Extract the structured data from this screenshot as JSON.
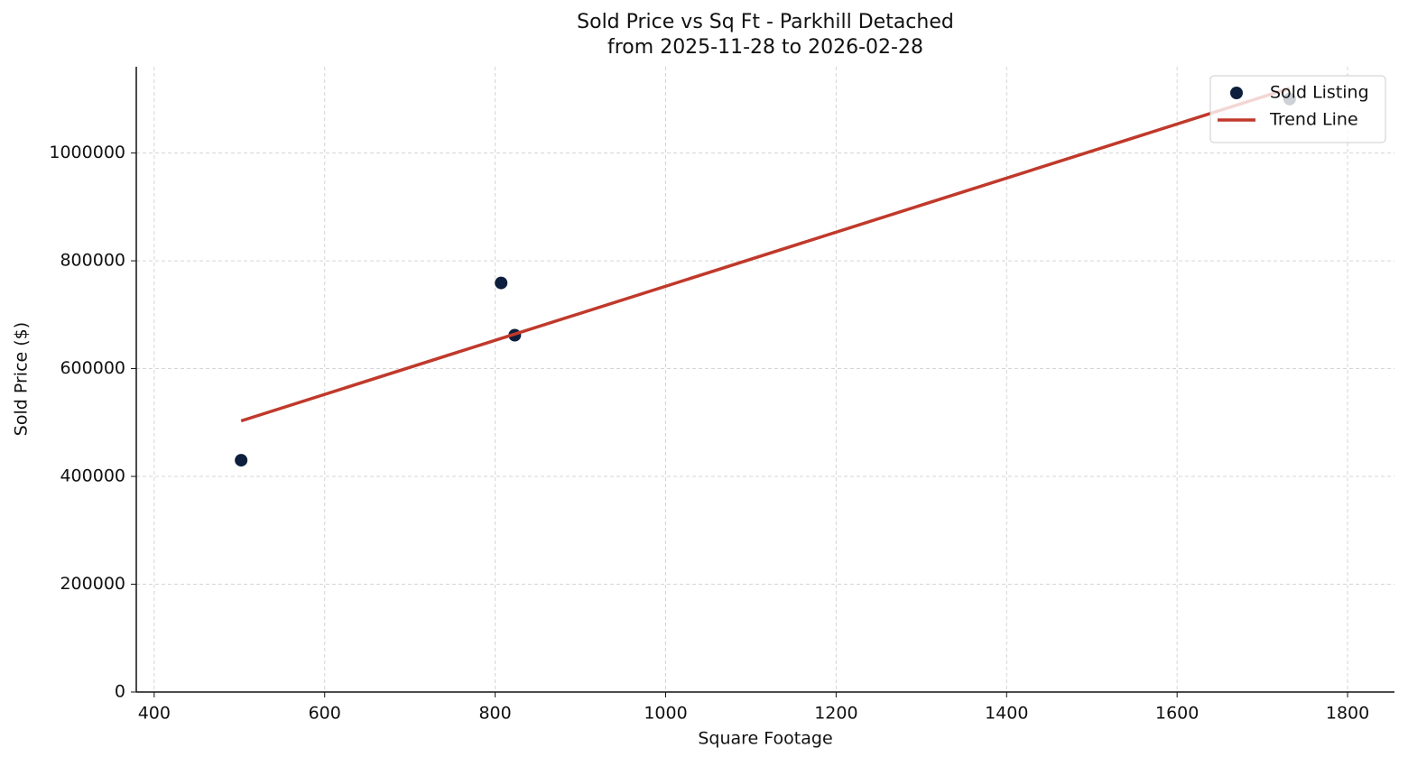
{
  "chart_data": {
    "type": "scatter",
    "title": "Sold Price vs Sq Ft - Parkhill Detached",
    "subtitle": "from 2025-11-28 to 2026-02-28",
    "x_label": "Square Footage",
    "y_label": "Sold Price ($)",
    "xlim": [
      379,
      1855
    ],
    "ylim": [
      0,
      1160000
    ],
    "xticks": [
      400,
      600,
      800,
      1000,
      1200,
      1400,
      1600,
      1800
    ],
    "yticks": [
      0,
      200000,
      400000,
      600000,
      800000,
      1000000
    ],
    "grid": true,
    "legend": "upper-right",
    "series": [
      {
        "name": "Sold Listing",
        "mode": "markers",
        "color": "#0d1f3c",
        "x": [
          502,
          807,
          823,
          1732
        ],
        "values": [
          430000,
          759000,
          662000,
          1100000
        ]
      },
      {
        "name": "Trend Line",
        "mode": "line",
        "color": "#c0392b",
        "x": [
          502,
          1732
        ],
        "values": [
          503000,
          1120000
        ]
      }
    ]
  }
}
